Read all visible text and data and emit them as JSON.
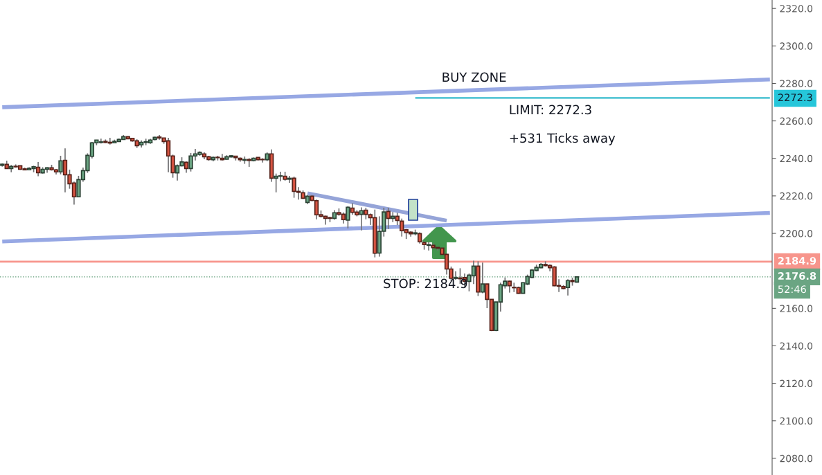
{
  "chart_data": {
    "type": "candlestick",
    "categories": [
      null,
      null,
      null,
      null,
      null,
      null,
      null,
      null,
      null,
      null,
      null,
      null,
      null,
      null,
      null,
      null,
      null,
      null,
      null,
      null,
      null,
      null,
      null,
      null,
      null,
      null,
      null,
      null,
      null,
      null,
      null,
      null,
      null,
      null,
      null,
      null,
      null,
      null,
      null,
      null,
      null,
      null,
      null,
      null,
      null,
      null,
      null,
      null,
      null,
      null,
      null,
      null,
      null,
      null,
      null,
      null,
      null,
      null,
      null,
      null,
      null,
      null,
      null,
      null,
      null,
      null,
      null,
      null,
      null,
      null,
      null,
      null,
      null,
      null,
      null,
      null,
      null,
      null,
      null,
      null,
      null,
      null,
      null,
      null,
      null,
      null,
      null,
      null,
      null,
      null,
      null,
      null,
      null,
      null,
      null,
      null,
      null,
      null,
      null,
      null,
      null,
      null,
      null,
      null,
      null,
      null,
      null,
      null,
      null,
      null,
      null,
      null,
      null,
      null,
      null,
      null,
      null,
      null,
      null,
      null,
      null,
      null,
      null,
      null,
      null,
      null,
      null,
      null,
      null,
      null,
      null,
      null,
      null,
      null,
      null,
      null,
      null,
      null,
      null,
      null,
      null,
      null,
      null,
      null,
      null,
      null,
      null,
      null,
      null,
      null,
      null,
      null,
      null,
      null,
      null,
      null,
      null,
      null,
      null,
      null,
      null,
      null,
      null,
      null,
      null,
      null,
      null,
      null,
      null,
      null,
      null,
      null
    ],
    "ohlc": [
      [
        2236.3,
        2237.3,
        2235.6,
        2236.9
      ],
      [
        2236.8,
        2238.8,
        2234.6,
        2234.6
      ],
      [
        2234.6,
        2236.5,
        2232.6,
        2235.7
      ],
      [
        2235.8,
        2236.8,
        2235.1,
        2235.5
      ],
      [
        2236.1,
        2236.1,
        2233.9,
        2234.2
      ],
      [
        2234.4,
        2235.1,
        2233.9,
        2233.9
      ],
      [
        2233.9,
        2235.3,
        2233.7,
        2234.7
      ],
      [
        2234.6,
        2236.1,
        2232.6,
        2235.5
      ],
      [
        2235.3,
        2238.1,
        2230.5,
        2232.4
      ],
      [
        2232.3,
        2235.3,
        2231.9,
        2234.2
      ],
      [
        2234.2,
        2235.3,
        2232.3,
        2235.0
      ],
      [
        2235.0,
        2236.6,
        2233.5,
        2233.9
      ],
      [
        2233.9,
        2234.4,
        2231.4,
        2232.8
      ],
      [
        2232.8,
        2241.4,
        2231.5,
        2238.7
      ],
      [
        2239.0,
        2245.4,
        2221.9,
        2231.3
      ],
      [
        2231.3,
        2234.0,
        2223.8,
        2226.5
      ],
      [
        2226.9,
        2227.6,
        2215.3,
        2219.5
      ],
      [
        2219.5,
        2230.7,
        2219.5,
        2228.7
      ],
      [
        2228.7,
        2235.1,
        2227.5,
        2233.5
      ],
      [
        2233.5,
        2242.7,
        2232.3,
        2241.6
      ],
      [
        2241.1,
        2248.8,
        2240.0,
        2248.3
      ],
      [
        2248.3,
        2249.9,
        2247.0,
        2249.8
      ],
      [
        2248.5,
        2250.5,
        2247.9,
        2248.8
      ],
      [
        2249.1,
        2250.1,
        2248.2,
        2248.5
      ],
      [
        2248.6,
        2251.0,
        2247.4,
        2248.2
      ],
      [
        2248.3,
        2250.0,
        2248.2,
        2249.1
      ],
      [
        2249.0,
        2250.6,
        2248.8,
        2250.1
      ],
      [
        2250.1,
        2252.5,
        2250.1,
        2251.6
      ],
      [
        2251.6,
        2251.8,
        2250.4,
        2250.5
      ],
      [
        2250.7,
        2250.7,
        2248.9,
        2249.4
      ],
      [
        2249.4,
        2250.2,
        2245.6,
        2246.8
      ],
      [
        2247.2,
        2249.6,
        2245.8,
        2248.6
      ],
      [
        2248.5,
        2250.5,
        2247.0,
        2248.9
      ],
      [
        2248.3,
        2250.4,
        2247.8,
        2249.8
      ],
      [
        2250.1,
        2251.6,
        2249.6,
        2251.2
      ],
      [
        2251.4,
        2252.5,
        2250.0,
        2250.9
      ],
      [
        2250.9,
        2251.0,
        2247.8,
        2249.0
      ],
      [
        2249.4,
        2251.0,
        2232.6,
        2241.3
      ],
      [
        2241.3,
        2242.0,
        2229.7,
        2232.4
      ],
      [
        2232.3,
        2236.8,
        2228.2,
        2236.1
      ],
      [
        2236.1,
        2240.6,
        2235.7,
        2238.1
      ],
      [
        2237.9,
        2238.3,
        2232.3,
        2234.6
      ],
      [
        2234.6,
        2242.9,
        2233.0,
        2241.3
      ],
      [
        2241.3,
        2245.1,
        2238.9,
        2242.4
      ],
      [
        2242.2,
        2243.8,
        2241.4,
        2243.2
      ],
      [
        2242.4,
        2243.2,
        2239.5,
        2240.9
      ],
      [
        2240.9,
        2241.4,
        2238.8,
        2239.4
      ],
      [
        2239.3,
        2241.0,
        2238.4,
        2240.5
      ],
      [
        2240.6,
        2241.4,
        2238.9,
        2240.4
      ],
      [
        2240.1,
        2242.4,
        2238.9,
        2239.3
      ],
      [
        2239.6,
        2241.7,
        2239.4,
        2240.9
      ],
      [
        2240.8,
        2241.7,
        2240.5,
        2241.4
      ],
      [
        2241.2,
        2241.4,
        2238.9,
        2240.4
      ],
      [
        2240.1,
        2240.5,
        2238.2,
        2239.3
      ],
      [
        2239.0,
        2241.0,
        2237.1,
        2239.4
      ],
      [
        2239.4,
        2240.1,
        2235.5,
        2238.9
      ],
      [
        2238.8,
        2240.5,
        2238.4,
        2240.1
      ],
      [
        2240.5,
        2240.6,
        2238.9,
        2239.3
      ],
      [
        2239.5,
        2240.1,
        2237.8,
        2239.3
      ],
      [
        2239.3,
        2243.2,
        2238.5,
        2242.4
      ],
      [
        2242.4,
        2244.8,
        2227.5,
        2229.4
      ],
      [
        2229.4,
        2231.9,
        2221.9,
        2230.5
      ],
      [
        2230.5,
        2232.9,
        2227.8,
        2230.7
      ],
      [
        2230.5,
        2232.9,
        2228.1,
        2228.9
      ],
      [
        2228.9,
        2230.7,
        2227.0,
        2229.4
      ],
      [
        2229.4,
        2230.3,
        2219.0,
        2222.4
      ],
      [
        2222.4,
        2224.7,
        2218.0,
        2221.9
      ],
      [
        2221.7,
        2222.9,
        2218.4,
        2218.7
      ],
      [
        2216.5,
        2220.4,
        2215.6,
        2219.8
      ],
      [
        2219.8,
        2220.3,
        2217.1,
        2217.6
      ],
      [
        2217.4,
        2218.0,
        2207.5,
        2209.9
      ],
      [
        2210.0,
        2212.2,
        2208.5,
        2209.1
      ],
      [
        2209.1,
        2209.4,
        2204.6,
        2208.0
      ],
      [
        2208.4,
        2208.9,
        2206.0,
        2208.0
      ],
      [
        2208.0,
        2212.4,
        2207.3,
        2211.0
      ],
      [
        2211.1,
        2213.3,
        2209.4,
        2210.2
      ],
      [
        2210.2,
        2211.2,
        2205.3,
        2207.3
      ],
      [
        2207.1,
        2214.5,
        2202.7,
        2213.9
      ],
      [
        2213.5,
        2216.1,
        2210.0,
        2211.2
      ],
      [
        2211.3,
        2212.4,
        2209.1,
        2209.9
      ],
      [
        2210.1,
        2213.9,
        2201.6,
        2212.1
      ],
      [
        2212.4,
        2213.7,
        2207.5,
        2210.1
      ],
      [
        2210.0,
        2210.6,
        2204.5,
        2208.4
      ],
      [
        2208.4,
        2212.7,
        2187.2,
        2189.4
      ],
      [
        2189.5,
        2209.1,
        2187.6,
        2201.1
      ],
      [
        2201.2,
        2213.7,
        2198.3,
        2211.4
      ],
      [
        2211.7,
        2213.7,
        2202.3,
        2208.0
      ],
      [
        2208.0,
        2211.4,
        2206.0,
        2209.1
      ],
      [
        2209.1,
        2211.0,
        2204.4,
        2206.9
      ],
      [
        2206.5,
        2207.9,
        2198.3,
        2201.4
      ],
      [
        2201.9,
        2202.3,
        2197.0,
        2200.4
      ],
      [
        2200.6,
        2201.1,
        2198.3,
        2199.8
      ],
      [
        2199.8,
        2202.0,
        2198.9,
        2200.3
      ],
      [
        2199.9,
        2200.6,
        2194.6,
        2195.5
      ],
      [
        2195.1,
        2195.8,
        2191.3,
        2194.0
      ],
      [
        2193.6,
        2195.2,
        2190.9,
        2194.0
      ],
      [
        2193.6,
        2194.7,
        2191.5,
        2192.4
      ],
      [
        2192.5,
        2193.0,
        2190.9,
        2192.1
      ],
      [
        2192.1,
        2192.5,
        2188.8,
        2188.8
      ],
      [
        2188.8,
        2189.3,
        2178.0,
        2181.0
      ],
      [
        2181.0,
        2182.3,
        2174.3,
        2176.0
      ],
      [
        2176.0,
        2179.8,
        2175.3,
        2176.4
      ],
      [
        2176.2,
        2181.4,
        2173.0,
        2175.8
      ],
      [
        2176.4,
        2178.6,
        2171.6,
        2174.5
      ],
      [
        2174.4,
        2178.6,
        2169.1,
        2177.7
      ],
      [
        2177.4,
        2185.4,
        2173.0,
        2182.5
      ],
      [
        2182.5,
        2185.1,
        2166.6,
        2168.7
      ],
      [
        2168.7,
        2184.4,
        2168.1,
        2173.0
      ],
      [
        2173.0,
        2173.0,
        2160.1,
        2164.8
      ],
      [
        2164.8,
        2164.8,
        2147.8,
        2148.2
      ],
      [
        2148.2,
        2163.4,
        2147.8,
        2163.4
      ],
      [
        2163.4,
        2173.7,
        2158.3,
        2172.6
      ],
      [
        2172.1,
        2176.5,
        2170.6,
        2174.5
      ],
      [
        2174.5,
        2174.8,
        2168.4,
        2172.1
      ],
      [
        2171.2,
        2173.7,
        2168.7,
        2171.0
      ],
      [
        2171.1,
        2171.6,
        2167.8,
        2168.0
      ],
      [
        2168.0,
        2173.9,
        2167.9,
        2173.7
      ],
      [
        2173.0,
        2178.0,
        2172.4,
        2177.0
      ],
      [
        2176.5,
        2181.0,
        2176.1,
        2180.4
      ],
      [
        2180.2,
        2183.3,
        2179.8,
        2181.9
      ],
      [
        2181.7,
        2184.1,
        2181.4,
        2183.5
      ],
      [
        2183.4,
        2185.1,
        2182.4,
        2182.8
      ],
      [
        2182.9,
        2183.5,
        2179.8,
        2181.7
      ],
      [
        2182.1,
        2182.5,
        2171.8,
        2172.1
      ],
      [
        2172.2,
        2175.5,
        2168.7,
        2171.8
      ],
      [
        2171.6,
        2172.4,
        2170.2,
        2170.6
      ],
      [
        2171.1,
        2175.5,
        2166.9,
        2174.8
      ],
      [
        2174.9,
        2176.4,
        2172.1,
        2174.3
      ],
      [
        2174.0,
        2176.8,
        2173.7,
        2176.8
      ],
      null,
      null,
      null,
      null,
      null,
      null,
      null,
      null,
      null,
      null,
      null,
      null,
      null,
      null,
      null,
      null,
      null,
      null,
      null,
      null,
      null,
      null,
      null,
      null,
      null,
      null,
      null,
      null,
      null,
      null,
      null,
      null,
      null,
      null,
      null,
      null,
      null,
      null,
      null,
      null,
      null,
      null,
      null
    ],
    "colors": [
      "#6ba583",
      "#d75442",
      "#6ba583",
      "#d75442",
      "#d75442",
      "#d75442",
      "#6ba583",
      "#6ba583",
      "#d75442",
      "#6ba583",
      "#6ba583",
      "#d75442",
      "#d75442",
      "#6ba583",
      "#d75442",
      "#d75442",
      "#d75442",
      "#6ba583",
      "#6ba583",
      "#6ba583",
      "#6ba583",
      "#6ba583",
      "#6ba583",
      "#d75442",
      "#d75442",
      "#6ba583",
      "#6ba583",
      "#6ba583",
      "#d75442",
      "#d75442",
      "#d75442",
      "#6ba583",
      "#6ba583",
      "#6ba583",
      "#6ba583",
      "#d75442",
      "#d75442",
      "#d75442",
      "#d75442",
      "#6ba583",
      "#6ba583",
      "#d75442",
      "#6ba583",
      "#6ba583",
      "#6ba583",
      "#d75442",
      "#d75442",
      "#6ba583",
      "#d75442",
      "#d75442",
      "#6ba583",
      "#6ba583",
      "#d75442",
      "#d75442",
      "#6ba583",
      "#d75442",
      "#6ba583",
      "#d75442",
      "#d75442",
      "#6ba583",
      "#d75442",
      "#6ba583",
      "#6ba583",
      "#d75442",
      "#6ba583",
      "#d75442",
      "#d75442",
      "#d75442",
      "#6ba583",
      "#d75442",
      "#d75442",
      "#d75442",
      "#d75442",
      "#d75442",
      "#6ba583",
      "#d75442",
      "#d75442",
      "#6ba583",
      "#d75442",
      "#d75442",
      "#6ba583",
      "#d75442",
      "#d75442",
      "#d75442",
      "#6ba583",
      "#6ba583",
      "#d75442",
      "#6ba583",
      "#d75442",
      "#d75442",
      "#d75442",
      "#d75442",
      "#6ba583",
      "#d75442",
      "#d75442",
      "#6ba583",
      "#d75442",
      "#d75442",
      "#d75442",
      "#d75442",
      "#d75442",
      "#6ba583",
      "#d75442",
      "#d75442",
      "#6ba583",
      "#6ba583",
      "#d75442",
      "#6ba583",
      "#d75442",
      "#d75442",
      "#6ba583",
      "#6ba583",
      "#6ba583",
      "#d75442",
      "#d75442",
      "#d75442",
      "#6ba583",
      "#6ba583",
      "#6ba583",
      "#6ba583",
      "#6ba583",
      "#d75442",
      "#d75442",
      "#d75442",
      "#d75442",
      "#d75442",
      "#6ba583",
      "#d75442",
      "#6ba583",
      null,
      null,
      null,
      null,
      null,
      null,
      null,
      null,
      null,
      null,
      null,
      null,
      null,
      null,
      null,
      null,
      null,
      null,
      null,
      null,
      null,
      null,
      null,
      null,
      null,
      null,
      null,
      null,
      null,
      null,
      null,
      null,
      null,
      null,
      null,
      null,
      null,
      null,
      null,
      null,
      null,
      null,
      null
    ],
    "series": [
      {
        "type": "line",
        "color": "#97a8e4",
        "values": [
          2267.3,
          null,
          null,
          null,
          null,
          null,
          null,
          null,
          null,
          null,
          null,
          null,
          null,
          null,
          null,
          null,
          null,
          null,
          null,
          null,
          null,
          null,
          null,
          null,
          null,
          null,
          null,
          null,
          null,
          null,
          null,
          null,
          null,
          null,
          null,
          null,
          null,
          null,
          null,
          null,
          null,
          null,
          null,
          null,
          null,
          null,
          null,
          null,
          null,
          null,
          null,
          null,
          null,
          null,
          null,
          null,
          null,
          null,
          null,
          null,
          null,
          null,
          null,
          null,
          null,
          null,
          null,
          null,
          null,
          null,
          null,
          null,
          null,
          null,
          null,
          null,
          null,
          null,
          null,
          null,
          null,
          null,
          null,
          null,
          null,
          null,
          null,
          null,
          null,
          null,
          null,
          null,
          null,
          null,
          null,
          null,
          null,
          null,
          null,
          null,
          null,
          null,
          null,
          null,
          null,
          null,
          null,
          null,
          null,
          null,
          null,
          null,
          null,
          null,
          null,
          null,
          null,
          null,
          null,
          null,
          null,
          null,
          null,
          null,
          null,
          null,
          null,
          null,
          null,
          null,
          null,
          null,
          null,
          null,
          null,
          null,
          null,
          null,
          null,
          null,
          null,
          null,
          null,
          null,
          null,
          null,
          null,
          null,
          null,
          null,
          null,
          null,
          null,
          null,
          null,
          null,
          null,
          null,
          null,
          null,
          null,
          null,
          null,
          null,
          null,
          null,
          null,
          null,
          null,
          null,
          null,
          2282.1
        ]
      },
      {
        "type": "line",
        "color": "#97a8e4",
        "values": [
          2195.7,
          null,
          null,
          null,
          null,
          null,
          null,
          null,
          null,
          null,
          null,
          null,
          null,
          null,
          null,
          null,
          null,
          null,
          null,
          null,
          null,
          null,
          null,
          null,
          null,
          null,
          null,
          null,
          null,
          null,
          null,
          null,
          null,
          null,
          null,
          null,
          null,
          null,
          null,
          null,
          null,
          null,
          null,
          null,
          null,
          null,
          null,
          null,
          null,
          null,
          null,
          null,
          null,
          null,
          null,
          null,
          null,
          null,
          null,
          null,
          null,
          null,
          null,
          null,
          null,
          null,
          null,
          null,
          null,
          null,
          null,
          null,
          null,
          null,
          null,
          null,
          null,
          null,
          null,
          null,
          null,
          null,
          null,
          null,
          null,
          null,
          null,
          null,
          null,
          null,
          null,
          null,
          null,
          null,
          null,
          null,
          null,
          null,
          null,
          null,
          null,
          null,
          null,
          null,
          null,
          null,
          null,
          null,
          null,
          null,
          null,
          null,
          null,
          null,
          null,
          null,
          null,
          null,
          null,
          null,
          null,
          null,
          null,
          null,
          null,
          null,
          null,
          null,
          null,
          null,
          null,
          null,
          null,
          null,
          null,
          null,
          null,
          null,
          null,
          null,
          null,
          null,
          null,
          null,
          null,
          null,
          null,
          null,
          null,
          null,
          null,
          null,
          null,
          null,
          null,
          null,
          null,
          null,
          null,
          null,
          null,
          null,
          null,
          null,
          null,
          null,
          null,
          null,
          null,
          null,
          null,
          2210.9
        ]
      },
      {
        "type": "line",
        "color": "#95a4d8",
        "values": [
          null,
          null,
          null,
          null,
          null,
          null,
          null,
          null,
          null,
          null,
          null,
          null,
          null,
          null,
          null,
          null,
          null,
          null,
          null,
          null,
          null,
          null,
          null,
          null,
          null,
          null,
          null,
          null,
          null,
          null,
          null,
          null,
          null,
          null,
          null,
          null,
          null,
          null,
          null,
          null,
          null,
          null,
          null,
          null,
          null,
          null,
          null,
          null,
          null,
          null,
          null,
          null,
          null,
          null,
          null,
          null,
          null,
          null,
          null,
          null,
          null,
          null,
          null,
          null,
          null,
          null,
          null,
          null,
          2221.4,
          null,
          null,
          null,
          null,
          null,
          null,
          null,
          null,
          null,
          null,
          null,
          null,
          null,
          null,
          null,
          null,
          null,
          null,
          null,
          null,
          null,
          null,
          null,
          null,
          null,
          null,
          null,
          null,
          null,
          null,
          2206.8,
          null,
          null,
          null,
          null,
          null,
          null,
          null,
          null,
          null,
          null,
          null,
          null,
          null,
          null,
          null,
          null,
          null,
          null,
          null,
          null,
          null,
          null,
          null,
          null,
          null,
          null,
          null,
          null,
          null,
          null,
          null,
          null,
          null,
          null,
          null,
          null,
          null,
          null,
          null,
          null,
          null,
          null,
          null,
          null,
          null,
          null,
          null,
          null,
          null,
          null,
          null,
          null,
          null,
          null,
          null,
          null,
          null,
          null,
          null,
          null,
          null,
          null,
          null,
          null,
          null,
          null,
          null,
          null,
          null,
          null,
          null,
          null
        ]
      },
      {
        "type": "line",
        "color": "#5bc8d6",
        "values": [
          null,
          null,
          null,
          null,
          null,
          null,
          null,
          null,
          null,
          null,
          null,
          null,
          null,
          null,
          null,
          null,
          null,
          null,
          null,
          null,
          null,
          null,
          null,
          null,
          null,
          null,
          null,
          null,
          null,
          null,
          null,
          null,
          null,
          null,
          null,
          null,
          null,
          null,
          null,
          null,
          null,
          null,
          null,
          null,
          null,
          null,
          null,
          null,
          null,
          null,
          null,
          null,
          null,
          null,
          null,
          null,
          null,
          null,
          null,
          null,
          null,
          null,
          null,
          null,
          null,
          null,
          null,
          null,
          null,
          null,
          null,
          null,
          null,
          null,
          null,
          null,
          null,
          null,
          null,
          null,
          null,
          null,
          null,
          null,
          null,
          null,
          null,
          null,
          null,
          null,
          null,
          null,
          2272.3,
          null,
          null,
          null,
          null,
          null,
          null,
          null,
          null,
          null,
          null,
          null,
          null,
          null,
          null,
          null,
          null,
          null,
          null,
          null,
          null,
          null,
          null,
          null,
          null,
          null,
          null,
          null,
          null,
          null,
          null,
          null,
          null,
          null,
          null,
          null,
          null,
          null,
          null,
          null,
          null,
          null,
          null,
          null,
          null,
          null,
          null,
          null,
          null,
          null,
          null,
          null,
          null,
          null,
          null,
          null,
          null,
          null,
          null,
          null,
          null,
          null,
          null,
          null,
          null,
          null,
          null,
          null,
          null,
          null,
          null,
          null,
          null,
          null,
          null,
          null,
          null,
          null,
          null,
          2272.3
        ]
      }
    ],
    "ref_lines": [
      {
        "axis": "y",
        "value": 2184.9,
        "label": "2184.9",
        "color": "#f7958c"
      },
      {
        "axis": "y",
        "value": 2176.8,
        "label": "2176.8",
        "color": "#5b9a74",
        "line_style": "dotted"
      }
    ],
    "annotations": [
      "BUY ZONE",
      "LIMIT: 2272.3",
      "+531 Ticks away",
      "STOP: 2184.9",
      "2272.3",
      "52:46"
    ],
    "ylim": [
      2071.1,
      2324.5
    ],
    "yticks": [
      {
        "value": 2080,
        "label": "2080.0"
      },
      {
        "value": 2100,
        "label": "2100.0"
      },
      {
        "value": 2120,
        "label": "2120.0"
      },
      {
        "value": 2140,
        "label": "2140.0"
      },
      {
        "value": 2160,
        "label": "2160.0"
      },
      {
        "value": 2200,
        "label": "2200.0"
      },
      {
        "value": 2220,
        "label": "2220.0"
      },
      {
        "value": 2240,
        "label": "2240.0"
      },
      {
        "value": 2260,
        "label": "2260.0"
      },
      {
        "value": 2280,
        "label": "2280.0"
      },
      {
        "value": 2300,
        "label": "2300.0"
      },
      {
        "value": 2320,
        "label": "2320.0"
      }
    ],
    "tick_labels": "y"
  }
}
